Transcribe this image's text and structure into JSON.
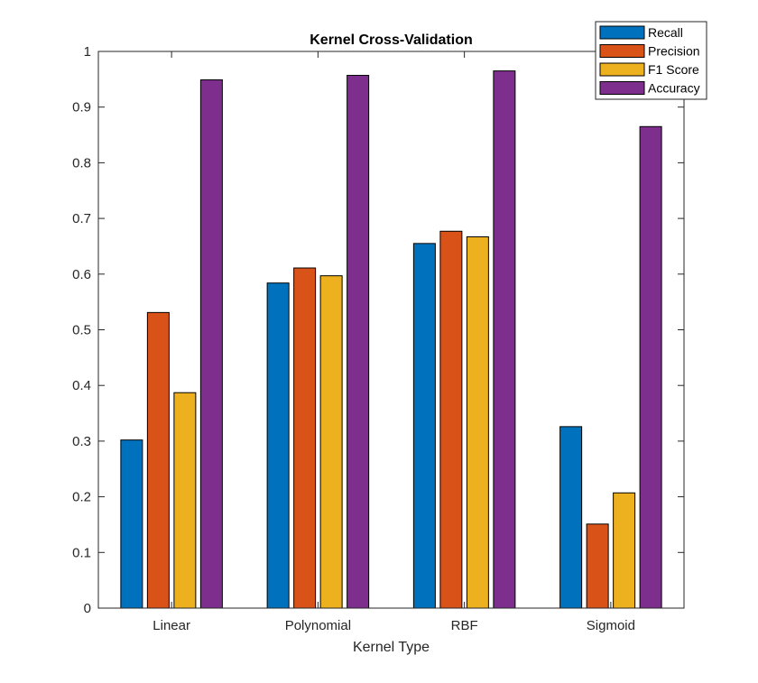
{
  "chart_data": {
    "type": "bar",
    "title": "Kernel Cross-Validation",
    "xlabel": "Kernel Type",
    "ylabel": "",
    "categories": [
      "Linear",
      "Polynomial",
      "RBF",
      "Sigmoid"
    ],
    "ylim": [
      0,
      1
    ],
    "yticks": [
      "0",
      "0.1",
      "0.2",
      "0.3",
      "0.4",
      "0.5",
      "0.6",
      "0.7",
      "0.8",
      "0.9",
      "1"
    ],
    "legend_position": "top-right",
    "grid": false,
    "series": [
      {
        "name": "Recall",
        "color": "#0072BD",
        "values": [
          0.302,
          0.584,
          0.655,
          0.326
        ]
      },
      {
        "name": "Precision",
        "color": "#D95319",
        "values": [
          0.531,
          0.611,
          0.677,
          0.151
        ]
      },
      {
        "name": "F1 Score",
        "color": "#EDB120",
        "values": [
          0.387,
          0.597,
          0.667,
          0.207
        ]
      },
      {
        "name": "Accuracy",
        "color": "#7E2F8E",
        "values": [
          0.949,
          0.957,
          0.965,
          0.865
        ]
      }
    ]
  }
}
